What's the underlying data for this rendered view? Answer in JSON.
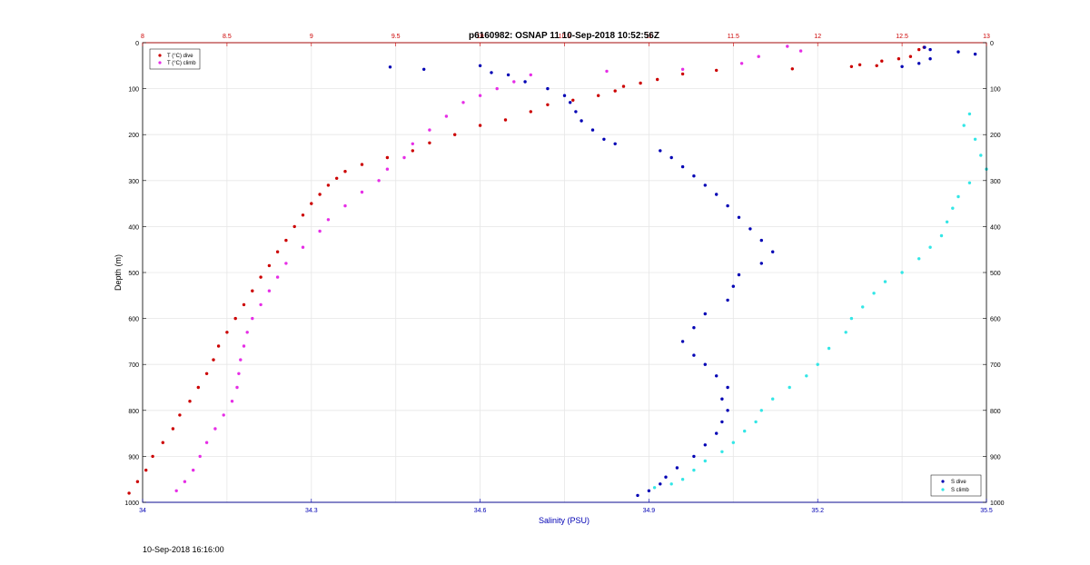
{
  "footer_timestamp": "10-Sep-2018 16:16:00",
  "chart_data": {
    "type": "scatter",
    "title": "p6160982: OSNAP 11 10-Sep-2018 10:52:56Z",
    "ylabel": "Depth (m)",
    "xlabel_bottom": "Salinity (PSU)",
    "xlabel_top": "",
    "y_range": [
      0,
      1000
    ],
    "y_reversed": true,
    "y_ticks": [
      0,
      100,
      200,
      300,
      400,
      500,
      600,
      700,
      800,
      900,
      1000
    ],
    "x_bottom_range": [
      34,
      35.5
    ],
    "x_bottom_ticks": [
      34,
      34.3,
      34.6,
      34.9,
      35.2,
      35.5
    ],
    "x_top_range": [
      8,
      13
    ],
    "x_top_ticks": [
      8,
      8.5,
      9,
      9.5,
      10,
      10.5,
      11,
      11.5,
      12,
      12.5,
      13
    ],
    "grid": true,
    "legend_top_left": [
      "T (°C) dive",
      "T (°C) climb"
    ],
    "legend_bottom_right": [
      "S dive",
      "S climb"
    ],
    "colors": {
      "t_dive": "#cc0000",
      "t_climb": "#e62ee6",
      "s_dive": "#0000b4",
      "s_climb": "#33e6e6",
      "top_axis": "#cc0000",
      "bottom_axis": "#0000b4",
      "grid": "#e6e6e6"
    },
    "series": [
      {
        "name": "T (°C) dive",
        "axis": "top",
        "color": "#cc0000",
        "points": [
          [
            12.63,
            10
          ],
          [
            12.6,
            15
          ],
          [
            12.55,
            30
          ],
          [
            12.48,
            35
          ],
          [
            12.38,
            40
          ],
          [
            12.35,
            50
          ],
          [
            12.25,
            48
          ],
          [
            12.2,
            52
          ],
          [
            11.85,
            57
          ],
          [
            11.4,
            60
          ],
          [
            11.2,
            68
          ],
          [
            11.05,
            80
          ],
          [
            10.95,
            88
          ],
          [
            10.85,
            95
          ],
          [
            10.8,
            105
          ],
          [
            10.7,
            115
          ],
          [
            10.55,
            125
          ],
          [
            10.4,
            135
          ],
          [
            10.3,
            150
          ],
          [
            10.15,
            168
          ],
          [
            10.0,
            180
          ],
          [
            9.85,
            200
          ],
          [
            9.7,
            218
          ],
          [
            9.6,
            235
          ],
          [
            9.45,
            250
          ],
          [
            9.3,
            265
          ],
          [
            9.2,
            280
          ],
          [
            9.15,
            295
          ],
          [
            9.1,
            310
          ],
          [
            9.05,
            330
          ],
          [
            9.0,
            350
          ],
          [
            8.95,
            375
          ],
          [
            8.9,
            400
          ],
          [
            8.85,
            430
          ],
          [
            8.8,
            455
          ],
          [
            8.75,
            485
          ],
          [
            8.7,
            510
          ],
          [
            8.65,
            540
          ],
          [
            8.6,
            570
          ],
          [
            8.55,
            600
          ],
          [
            8.5,
            630
          ],
          [
            8.45,
            660
          ],
          [
            8.42,
            690
          ],
          [
            8.38,
            720
          ],
          [
            8.33,
            750
          ],
          [
            8.28,
            780
          ],
          [
            8.22,
            810
          ],
          [
            8.18,
            840
          ],
          [
            8.12,
            870
          ],
          [
            8.06,
            900
          ],
          [
            8.02,
            930
          ],
          [
            7.97,
            955
          ],
          [
            7.92,
            980
          ]
        ]
      },
      {
        "name": "T (°C) climb",
        "axis": "top",
        "color": "#e62ee6",
        "points": [
          [
            11.82,
            8
          ],
          [
            11.9,
            18
          ],
          [
            11.65,
            30
          ],
          [
            11.55,
            45
          ],
          [
            11.2,
            58
          ],
          [
            10.75,
            62
          ],
          [
            10.3,
            70
          ],
          [
            10.2,
            85
          ],
          [
            10.1,
            100
          ],
          [
            10.0,
            115
          ],
          [
            9.9,
            130
          ],
          [
            9.8,
            160
          ],
          [
            9.7,
            190
          ],
          [
            9.6,
            220
          ],
          [
            9.55,
            250
          ],
          [
            9.45,
            275
          ],
          [
            9.4,
            300
          ],
          [
            9.3,
            325
          ],
          [
            9.2,
            355
          ],
          [
            9.1,
            385
          ],
          [
            9.05,
            410
          ],
          [
            8.95,
            445
          ],
          [
            8.85,
            480
          ],
          [
            8.8,
            510
          ],
          [
            8.75,
            540
          ],
          [
            8.7,
            570
          ],
          [
            8.65,
            600
          ],
          [
            8.62,
            630
          ],
          [
            8.6,
            660
          ],
          [
            8.58,
            690
          ],
          [
            8.57,
            720
          ],
          [
            8.56,
            750
          ],
          [
            8.53,
            780
          ],
          [
            8.48,
            810
          ],
          [
            8.43,
            840
          ],
          [
            8.38,
            870
          ],
          [
            8.34,
            900
          ],
          [
            8.3,
            930
          ],
          [
            8.25,
            955
          ],
          [
            8.2,
            975
          ]
        ]
      },
      {
        "name": "S dive",
        "axis": "bottom",
        "color": "#0000b4",
        "points": [
          [
            35.39,
            10
          ],
          [
            35.4,
            15
          ],
          [
            35.45,
            20
          ],
          [
            35.48,
            25
          ],
          [
            35.4,
            35
          ],
          [
            35.38,
            45
          ],
          [
            35.35,
            52
          ],
          [
            34.44,
            53
          ],
          [
            34.5,
            58
          ],
          [
            34.6,
            50
          ],
          [
            34.62,
            65
          ],
          [
            34.65,
            70
          ],
          [
            34.68,
            85
          ],
          [
            34.72,
            100
          ],
          [
            34.75,
            115
          ],
          [
            34.76,
            130
          ],
          [
            34.77,
            150
          ],
          [
            34.78,
            170
          ],
          [
            34.8,
            190
          ],
          [
            34.82,
            210
          ],
          [
            34.84,
            220
          ],
          [
            34.92,
            235
          ],
          [
            34.94,
            250
          ],
          [
            34.96,
            270
          ],
          [
            34.98,
            290
          ],
          [
            35.0,
            310
          ],
          [
            35.02,
            330
          ],
          [
            35.04,
            355
          ],
          [
            35.06,
            380
          ],
          [
            35.08,
            405
          ],
          [
            35.1,
            430
          ],
          [
            35.12,
            455
          ],
          [
            35.1,
            480
          ],
          [
            35.06,
            505
          ],
          [
            35.05,
            530
          ],
          [
            35.04,
            560
          ],
          [
            35.0,
            590
          ],
          [
            34.98,
            620
          ],
          [
            34.96,
            650
          ],
          [
            34.98,
            680
          ],
          [
            35.0,
            700
          ],
          [
            35.02,
            725
          ],
          [
            35.04,
            750
          ],
          [
            35.03,
            775
          ],
          [
            35.04,
            800
          ],
          [
            35.03,
            825
          ],
          [
            35.02,
            850
          ],
          [
            35.0,
            875
          ],
          [
            34.98,
            900
          ],
          [
            34.95,
            925
          ],
          [
            34.93,
            945
          ],
          [
            34.92,
            960
          ],
          [
            34.9,
            975
          ],
          [
            34.88,
            985
          ]
        ]
      },
      {
        "name": "S climb",
        "axis": "bottom",
        "color": "#33e6e6",
        "points": [
          [
            35.47,
            155
          ],
          [
            35.46,
            180
          ],
          [
            35.48,
            210
          ],
          [
            35.49,
            245
          ],
          [
            35.5,
            275
          ],
          [
            35.47,
            305
          ],
          [
            35.45,
            335
          ],
          [
            35.44,
            360
          ],
          [
            35.43,
            390
          ],
          [
            35.42,
            420
          ],
          [
            35.4,
            445
          ],
          [
            35.38,
            470
          ],
          [
            35.35,
            500
          ],
          [
            35.32,
            520
          ],
          [
            35.3,
            545
          ],
          [
            35.28,
            575
          ],
          [
            35.26,
            600
          ],
          [
            35.25,
            630
          ],
          [
            35.22,
            665
          ],
          [
            35.2,
            700
          ],
          [
            35.18,
            725
          ],
          [
            35.15,
            750
          ],
          [
            35.12,
            775
          ],
          [
            35.1,
            800
          ],
          [
            35.09,
            825
          ],
          [
            35.07,
            845
          ],
          [
            35.05,
            870
          ],
          [
            35.03,
            890
          ],
          [
            35.0,
            910
          ],
          [
            34.98,
            930
          ],
          [
            34.96,
            950
          ],
          [
            34.94,
            960
          ],
          [
            34.91,
            968
          ]
        ]
      }
    ]
  }
}
